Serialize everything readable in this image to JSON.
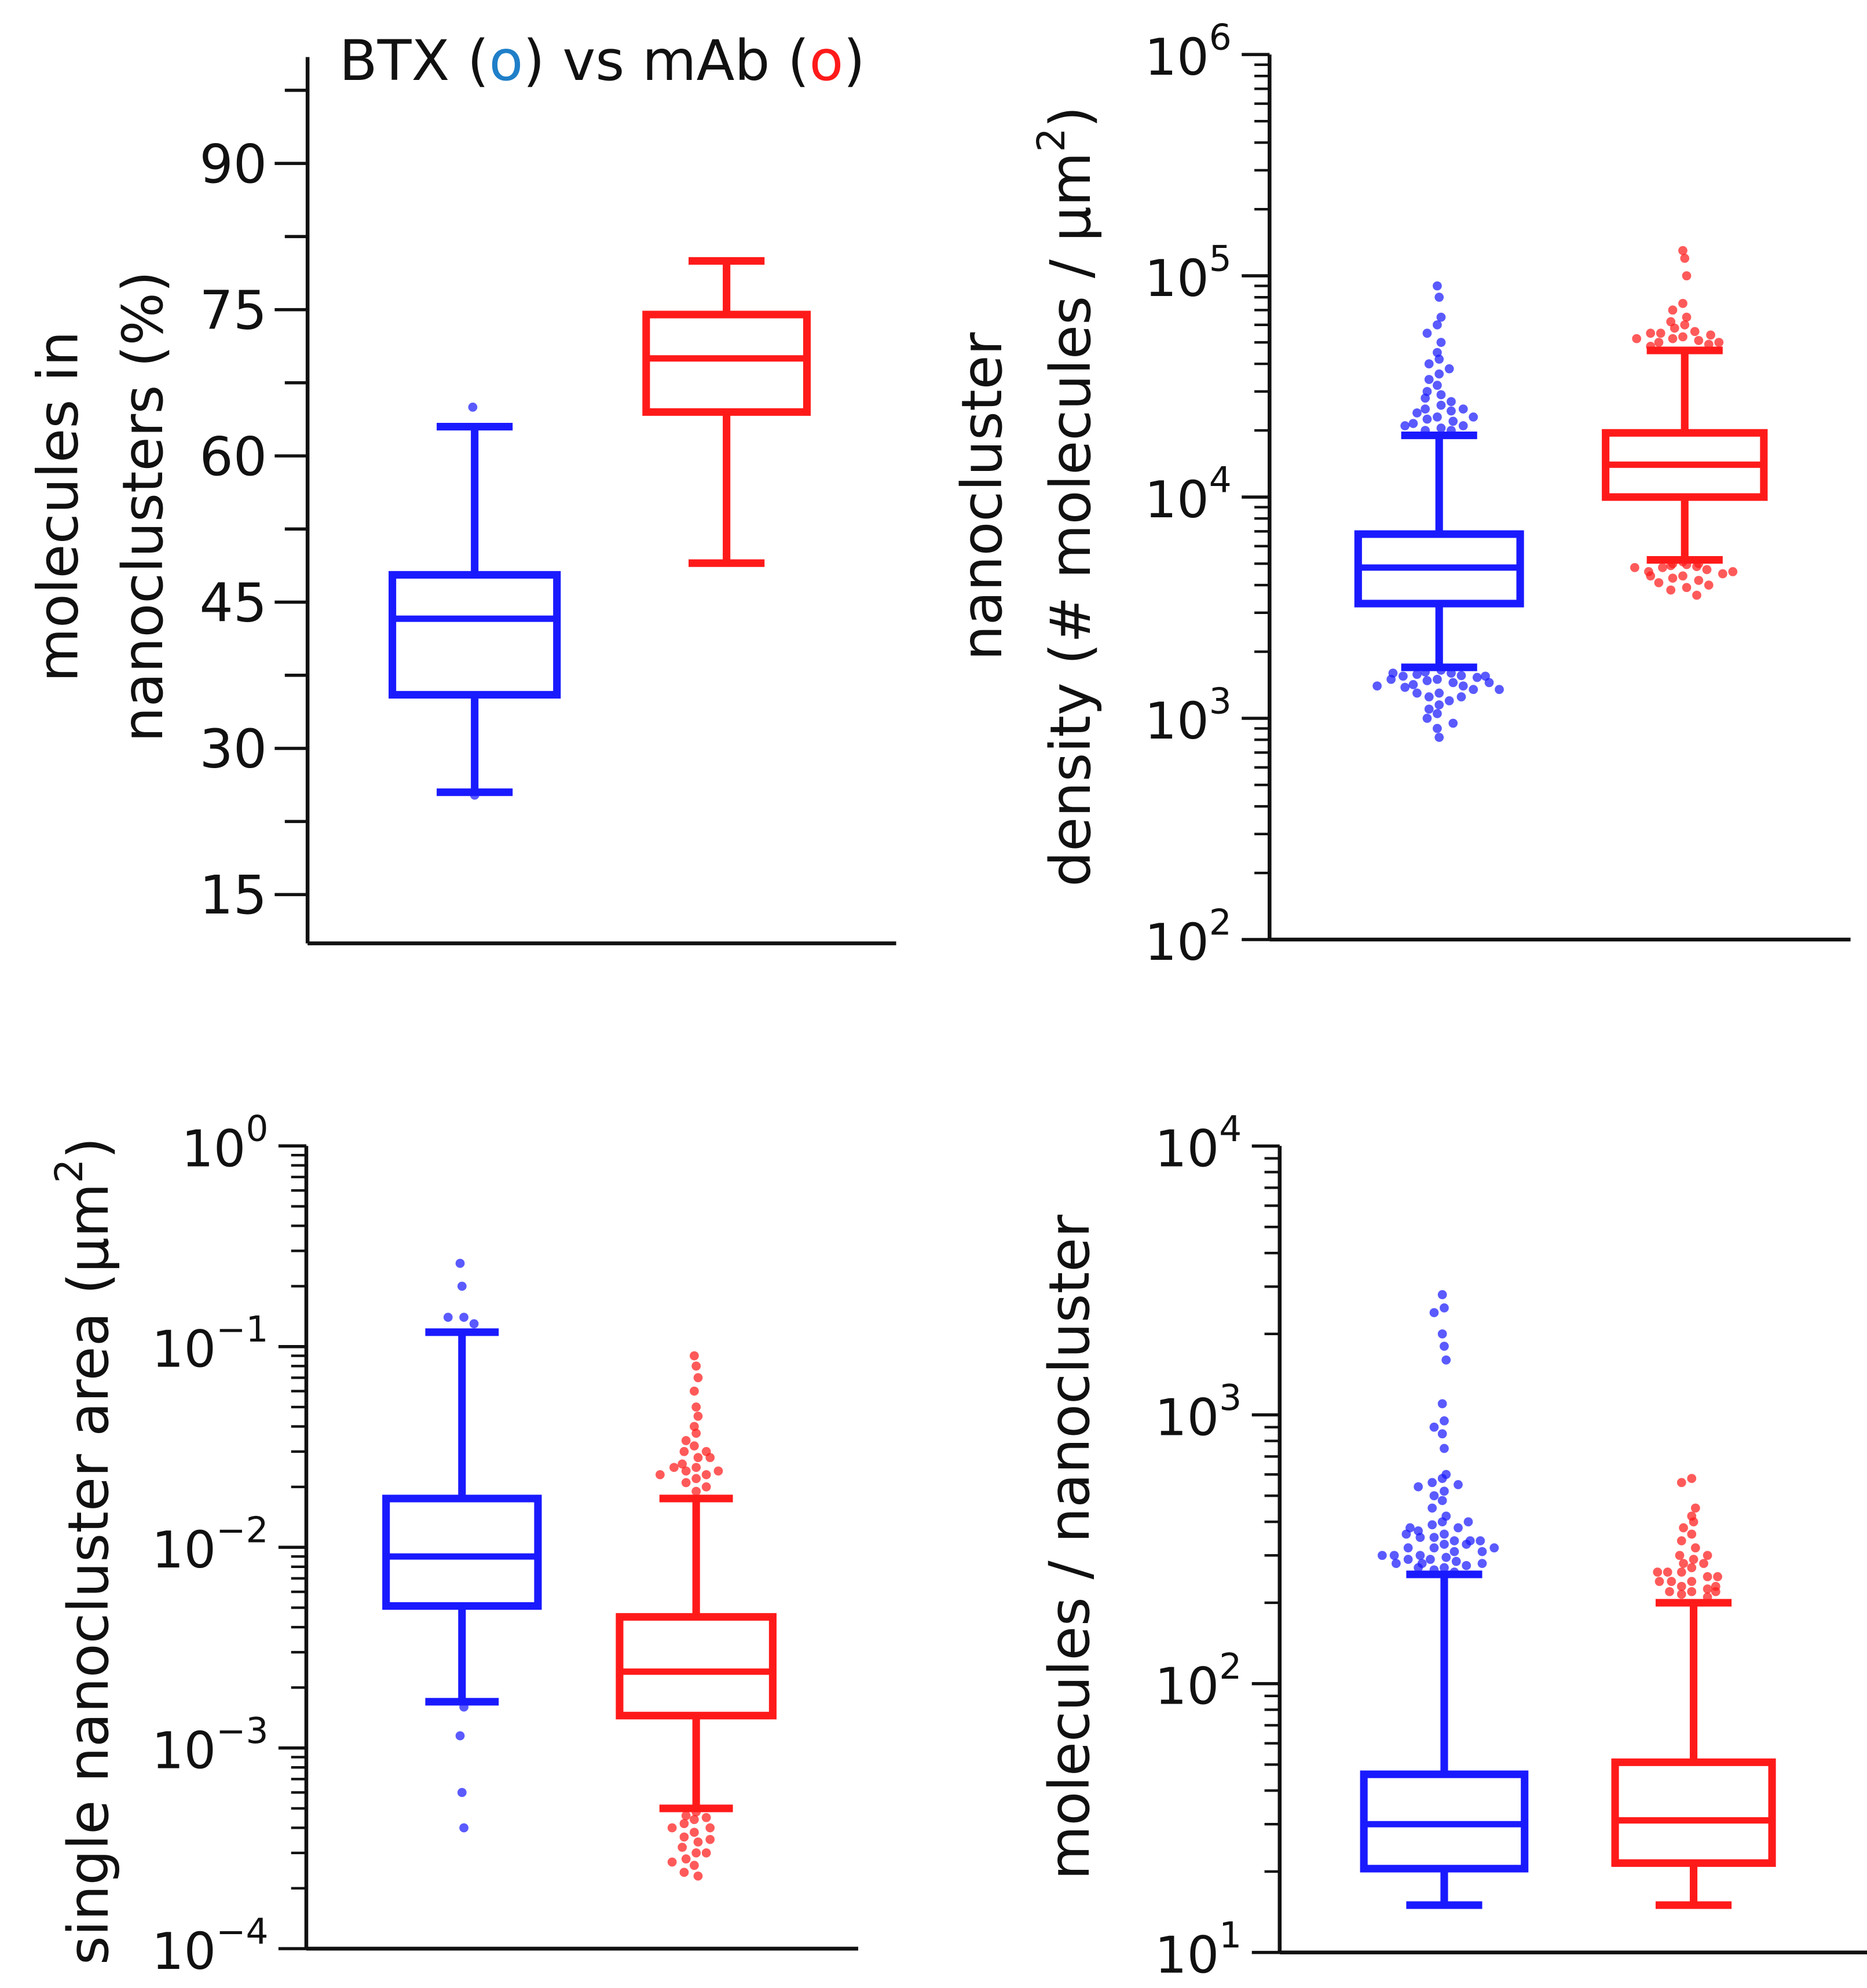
{
  "colors": {
    "btx": "#1a1aff",
    "mab": "#ff1a1a",
    "btx_title_o": "#1f7fc8",
    "axis": "#111111"
  },
  "chart_data": [
    {
      "id": "pct",
      "type": "box",
      "title_parts": [
        "BTX (",
        "o",
        ") vs mAb (",
        "o",
        ")"
      ],
      "ylabel_lines": [
        "molecules in",
        "nanoclusters (%)"
      ],
      "yscale": "linear",
      "ylim": [
        10,
        101
      ],
      "yticks": [
        15,
        30,
        45,
        60,
        75,
        90
      ],
      "ytick_labels": [
        "15",
        "30",
        "45",
        "60",
        "75",
        "90"
      ],
      "minor_step": 7.5,
      "series": [
        {
          "name": "BTX",
          "whisker_low": 25.5,
          "q1": 35.5,
          "median": 43.3,
          "q3": 47.8,
          "whisker_high": 63,
          "outliers": [
            65,
            25.2
          ]
        },
        {
          "name": "mAb",
          "whisker_low": 49,
          "q1": 64.5,
          "median": 70,
          "q3": 74.5,
          "whisker_high": 80,
          "outliers": []
        }
      ]
    },
    {
      "id": "density",
      "type": "box",
      "ylabel_lines": [
        "nanocluster",
        "density (# molecules / µm",
        "2",
        ")"
      ],
      "yscale": "log",
      "ylim": [
        100,
        1000000
      ],
      "ytick_base": "10",
      "ytick_exponents": [
        "2",
        "3",
        "4",
        "5",
        "6"
      ],
      "series": [
        {
          "name": "BTX",
          "whisker_low": 1700,
          "q1": 3300,
          "median": 4800,
          "q3": 6800,
          "whisker_high": 19000,
          "outliers": [
            90000,
            80000,
            65000,
            60000,
            55000,
            50000,
            45000,
            42000,
            40000,
            38000,
            36000,
            34000,
            32000,
            30000,
            29000,
            28000,
            27000,
            26000,
            25000,
            24500,
            24000,
            23000,
            22500,
            22000,
            21500,
            21000,
            20500,
            20000,
            20000,
            21000,
            23000,
            25000,
            1650,
            1620,
            1600,
            1580,
            1560,
            1550,
            1530,
            1500,
            1480,
            1450,
            1420,
            1400,
            1380,
            1350,
            1300,
            1250,
            1200,
            1150,
            1100,
            1050,
            1000,
            950,
            900,
            820,
            1600,
            1550,
            1500,
            1450,
            1400,
            1350,
            1300,
            1250
          ]
        },
        {
          "name": "mAb",
          "whisker_low": 5200,
          "q1": 10000,
          "median": 14000,
          "q3": 19500,
          "whisker_high": 46000,
          "outliers": [
            130000,
            120000,
            100000,
            75000,
            70000,
            65000,
            62000,
            60000,
            58000,
            56000,
            55000,
            54000,
            53000,
            52000,
            51000,
            50000,
            49000,
            48000,
            50000,
            52000,
            55000,
            5100,
            5000,
            4950,
            4900,
            4850,
            4800,
            4700,
            4600,
            4500,
            4400,
            4300,
            4200,
            4100,
            4000,
            3900,
            3800,
            3600,
            5000,
            4800,
            4600,
            4400
          ]
        }
      ]
    },
    {
      "id": "area",
      "type": "box",
      "ylabel_lines": [
        "single nanocluster area (µm",
        "2",
        ")"
      ],
      "yscale": "log",
      "ylim": [
        0.0001,
        1
      ],
      "ytick_base": "10",
      "ytick_exponents": [
        "−4",
        "−3",
        "−2",
        "−1",
        "0"
      ],
      "series": [
        {
          "name": "BTX",
          "whisker_low": 0.0017,
          "q1": 0.0051,
          "median": 0.009,
          "q3": 0.0175,
          "whisker_high": 0.118,
          "outliers": [
            0.26,
            0.2,
            0.14,
            0.14,
            0.13,
            0.0016,
            0.00115,
            0.0006,
            0.0004
          ]
        },
        {
          "name": "mAb",
          "whisker_low": 0.0005,
          "q1": 0.00145,
          "median": 0.0024,
          "q3": 0.0045,
          "whisker_high": 0.0175,
          "outliers": [
            0.09,
            0.08,
            0.07,
            0.06,
            0.05,
            0.045,
            0.04,
            0.037,
            0.034,
            0.032,
            0.03,
            0.028,
            0.026,
            0.025,
            0.024,
            0.023,
            0.022,
            0.021,
            0.02,
            0.019,
            0.025,
            0.024,
            0.023,
            0.028,
            0.03,
            0.00048,
            0.00046,
            0.00044,
            0.00042,
            0.0004,
            0.00038,
            0.00036,
            0.00034,
            0.00032,
            0.0003,
            0.00028,
            0.00026,
            0.00024,
            0.00023,
            0.00045,
            0.0004,
            0.00035,
            0.0003,
            0.00027
          ]
        }
      ]
    },
    {
      "id": "count",
      "type": "box",
      "ylabel_lines": [
        "molecules / nanocluster"
      ],
      "yscale": "log",
      "ylim": [
        10,
        10000
      ],
      "ytick_base": "10",
      "ytick_exponents": [
        "1",
        "2",
        "3",
        "4"
      ],
      "series": [
        {
          "name": "BTX",
          "whisker_low": 15,
          "q1": 20.5,
          "median": 30,
          "q3": 46,
          "whisker_high": 255,
          "outliers": [
            2800,
            2500,
            2400,
            2000,
            1800,
            1600,
            1100,
            950,
            900,
            850,
            750,
            600,
            580,
            560,
            550,
            540,
            520,
            500,
            480,
            450,
            420,
            400,
            390,
            380,
            370,
            360,
            350,
            340,
            330,
            320,
            310,
            300,
            295,
            290,
            285,
            280,
            275,
            270,
            265,
            260,
            350,
            340,
            330,
            320,
            310,
            300,
            290,
            280,
            270,
            400,
            380,
            360,
            340,
            320,
            300,
            280
          ]
        },
        {
          "name": "mAb",
          "whisker_low": 15,
          "q1": 21.5,
          "median": 31,
          "q3": 51,
          "whisker_high": 200,
          "outliers": [
            580,
            560,
            450,
            420,
            400,
            380,
            360,
            340,
            320,
            300,
            290,
            280,
            270,
            260,
            250,
            240,
            230,
            225,
            220,
            215,
            210,
            260,
            250,
            240,
            230,
            220,
            300,
            280,
            260,
            240,
            220
          ]
        }
      ]
    }
  ]
}
